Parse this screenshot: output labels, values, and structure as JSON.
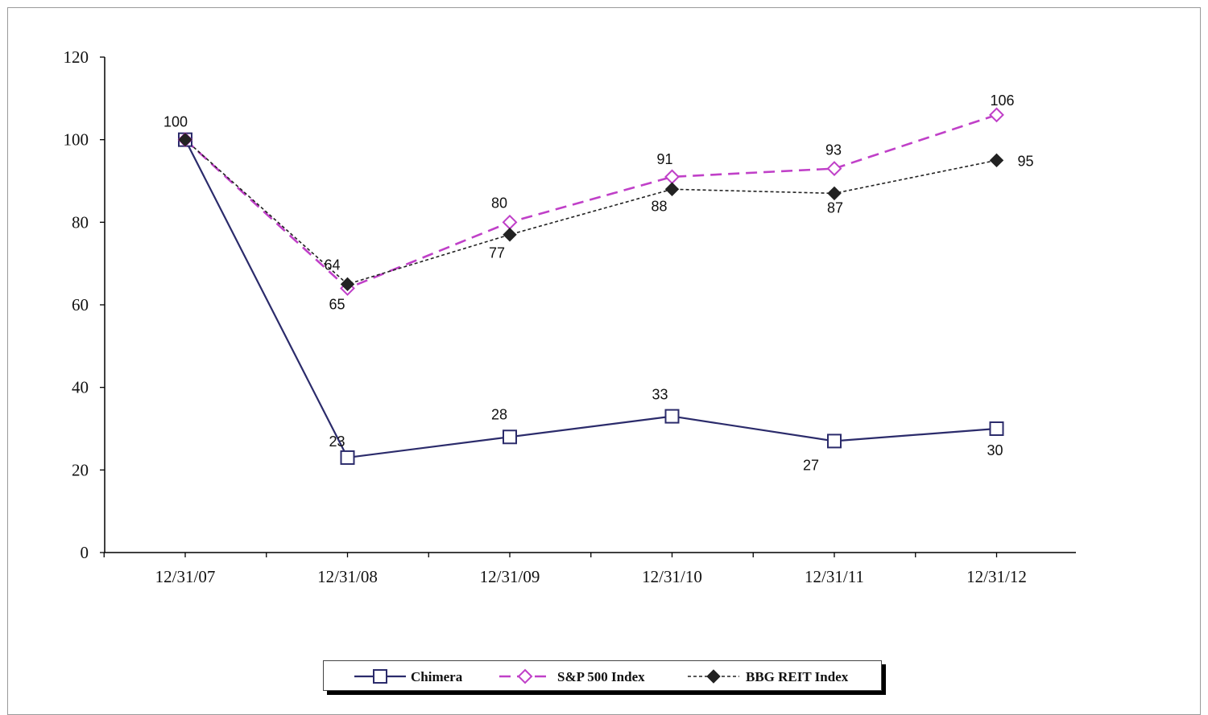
{
  "chart_data": {
    "type": "line",
    "categories": [
      "12/31/07",
      "12/31/08",
      "12/31/09",
      "12/31/10",
      "12/31/11",
      "12/31/12"
    ],
    "ylim": [
      0,
      120
    ],
    "yticks": [
      0,
      20,
      40,
      60,
      80,
      100,
      120
    ],
    "grid": false,
    "legend_position": "bottom",
    "series": [
      {
        "name": "Chimera",
        "values": [
          100,
          23,
          28,
          33,
          27,
          30
        ],
        "color": "#2b2b6b",
        "marker": "square-open",
        "dash": "solid"
      },
      {
        "name": "S&P 500 Index",
        "values": [
          100,
          64,
          80,
          91,
          93,
          106
        ],
        "color": "#c040c8",
        "marker": "diamond-open",
        "dash": "long-dash"
      },
      {
        "name": "BBG REIT Index",
        "values": [
          100,
          65,
          77,
          88,
          87,
          95
        ],
        "color": "#222222",
        "marker": "diamond-filled",
        "dash": "short-dash"
      }
    ],
    "data_labels": [
      {
        "text": "100"
      },
      {
        "text": "64"
      },
      {
        "text": "65"
      },
      {
        "text": "23"
      },
      {
        "text": "80"
      },
      {
        "text": "77"
      },
      {
        "text": "28"
      },
      {
        "text": "91"
      },
      {
        "text": "88"
      },
      {
        "text": "33"
      },
      {
        "text": "93"
      },
      {
        "text": "87"
      },
      {
        "text": "27"
      },
      {
        "text": "106"
      },
      {
        "text": "95"
      },
      {
        "text": "30"
      }
    ]
  }
}
